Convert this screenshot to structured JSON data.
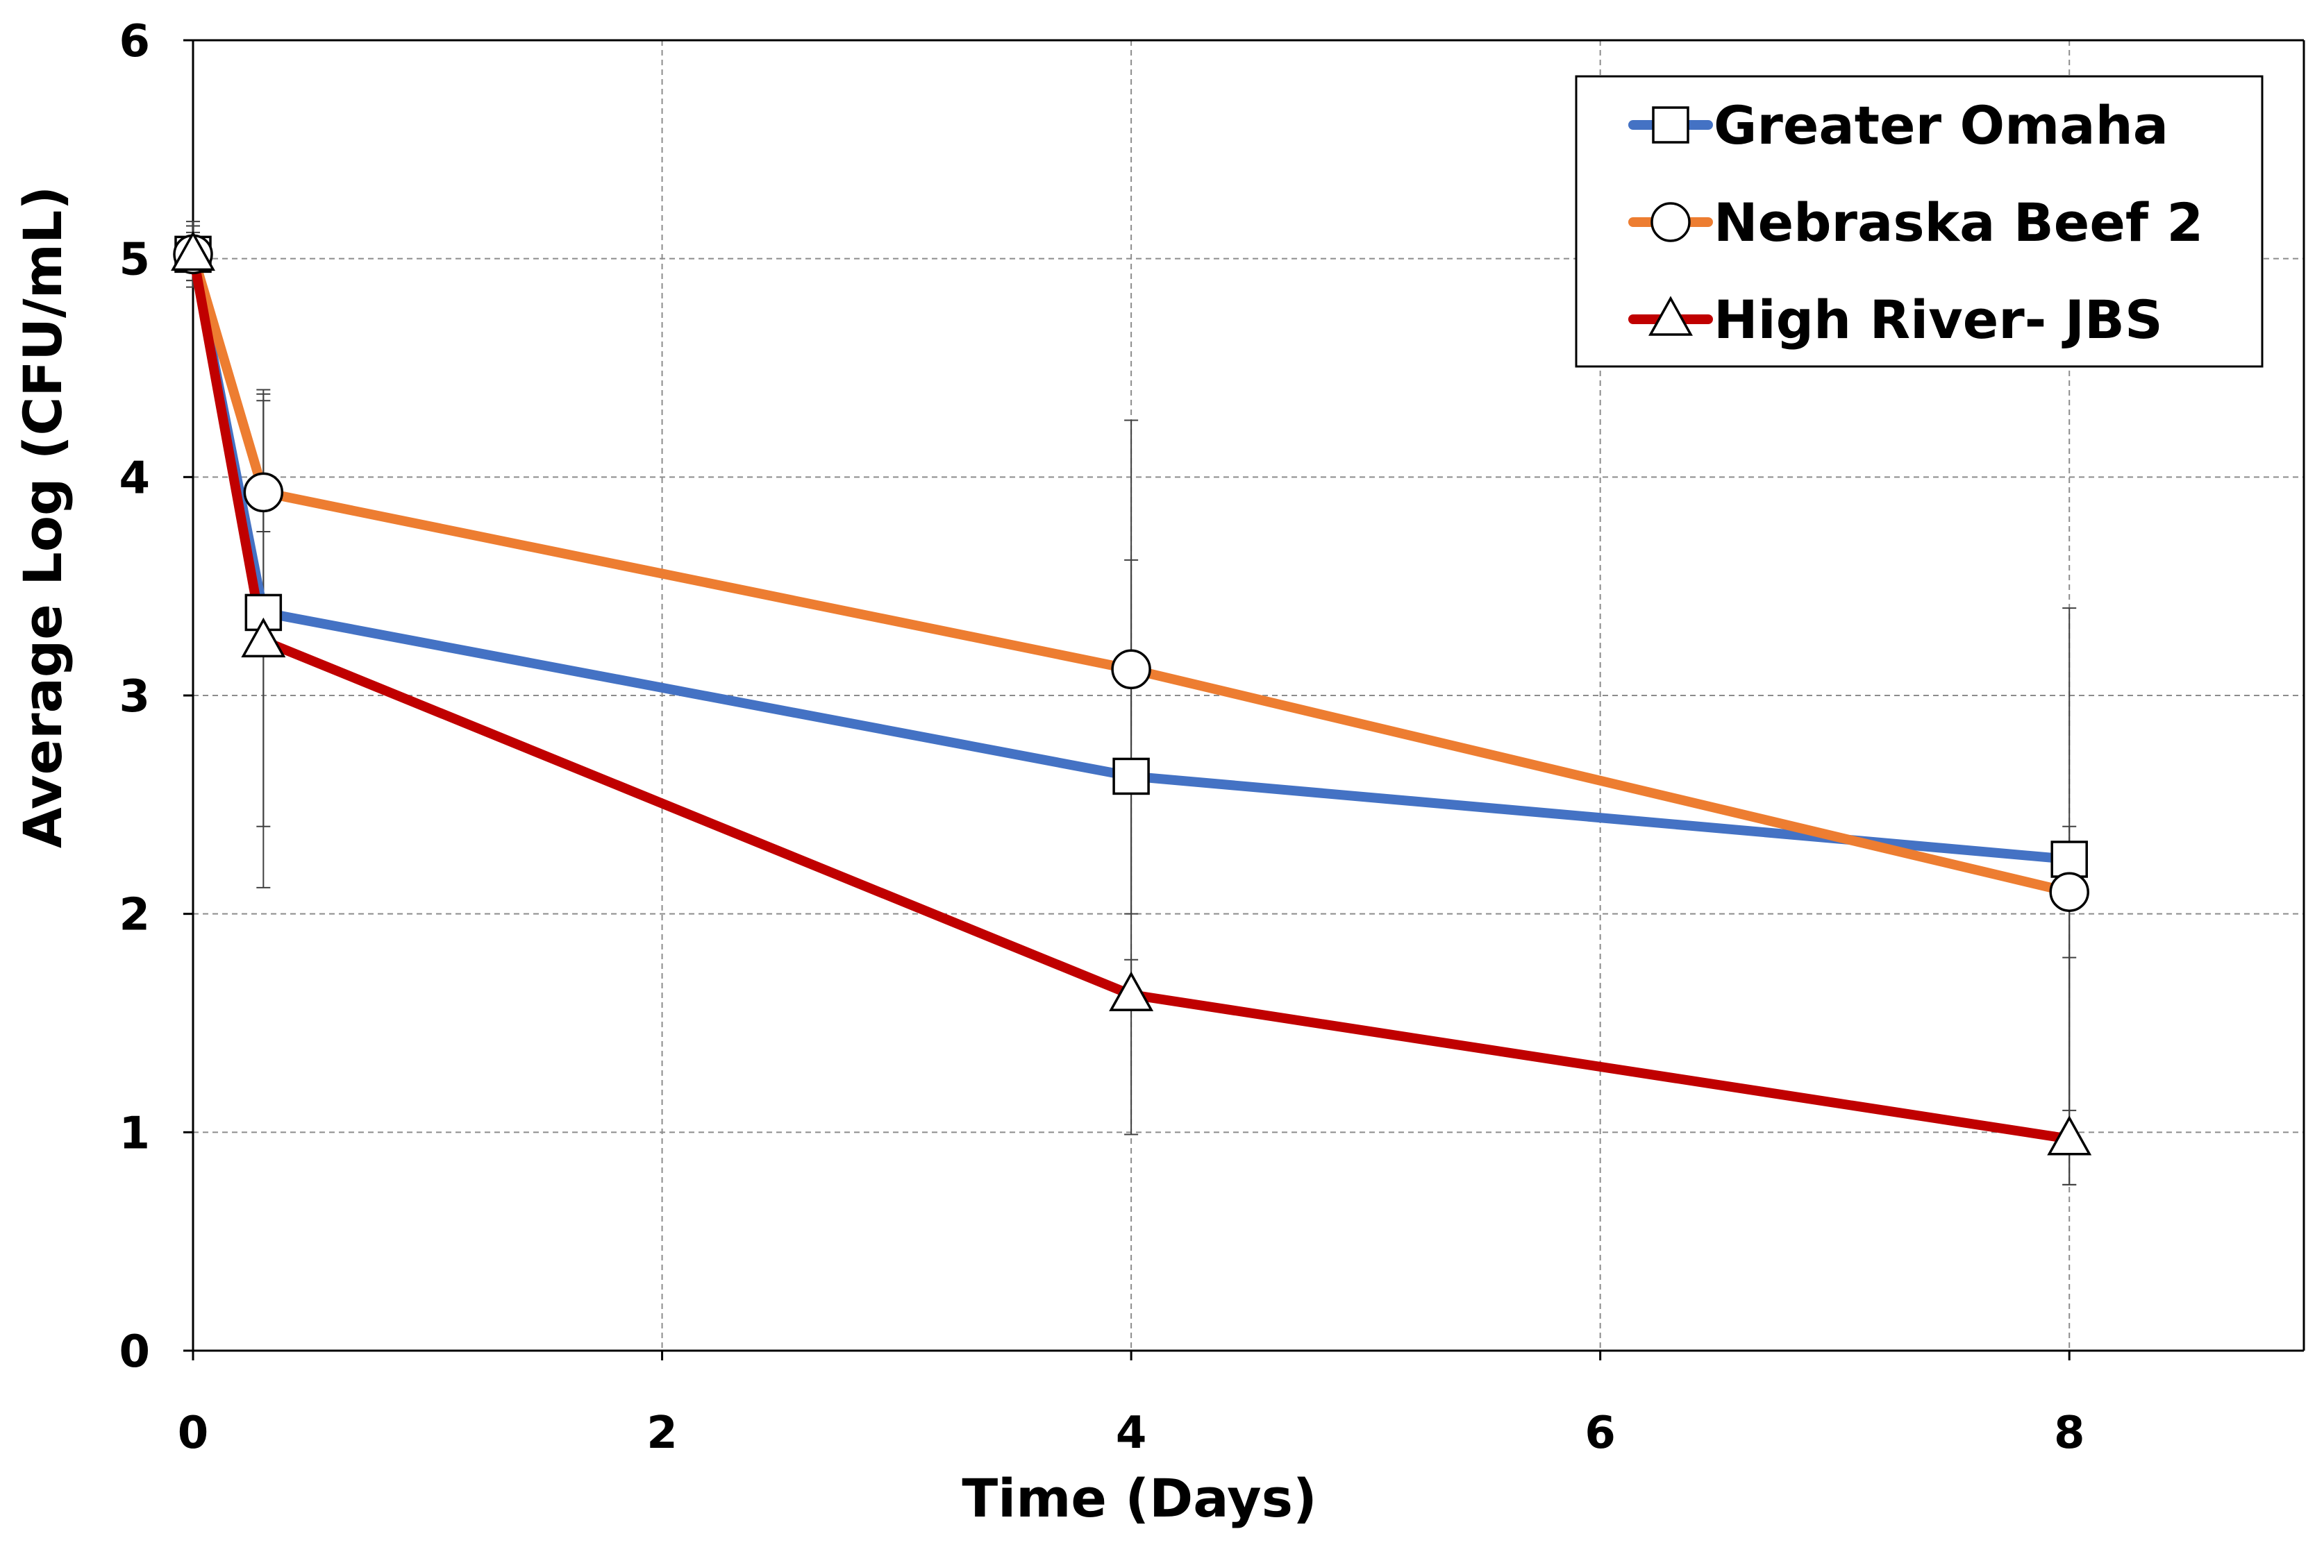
{
  "chart_data": {
    "type": "line",
    "title": "",
    "xlabel": "Time (Days)",
    "ylabel": "Average Log (CFU/mL)",
    "xlim": [
      0,
      9
    ],
    "ylim": [
      0,
      6
    ],
    "x_ticks": [
      0,
      2,
      4,
      6,
      8
    ],
    "y_ticks": [
      0,
      1,
      2,
      3,
      4,
      5,
      6
    ],
    "x_gridlines": [
      2,
      4,
      6,
      8
    ],
    "y_gridlines": [
      1,
      2,
      3,
      4,
      5
    ],
    "grid": "dashed",
    "legend_position": "top-right",
    "series": [
      {
        "name": "Greater Omaha",
        "color": "#4472C4",
        "marker": "square",
        "x": [
          0,
          0.3,
          4,
          8
        ],
        "y": [
          5.02,
          3.38,
          2.63,
          2.25
        ],
        "err_low": [
          4.87,
          2.4,
          1.65,
          1.1
        ],
        "err_high": [
          5.17,
          4.38,
          3.62,
          3.4
        ]
      },
      {
        "name": "Nebraska Beef 2",
        "color": "#ED7D31",
        "marker": "circle",
        "x": [
          0,
          0.3,
          4,
          8
        ],
        "y": [
          5.02,
          3.93,
          3.12,
          2.1
        ],
        "err_low": [
          4.9,
          3.75,
          2.0,
          0.76
        ],
        "err_high": [
          5.12,
          4.4,
          4.26,
          2.4
        ]
      },
      {
        "name": "High River- JBS",
        "color": "#C00000",
        "marker": "triangle",
        "x": [
          0,
          0.3,
          4,
          8
        ],
        "y": [
          5.02,
          3.25,
          1.63,
          0.97
        ],
        "err_low": [
          4.9,
          2.12,
          0.99,
          0.76
        ],
        "err_high": [
          5.15,
          4.35,
          1.79,
          1.8
        ]
      }
    ]
  }
}
